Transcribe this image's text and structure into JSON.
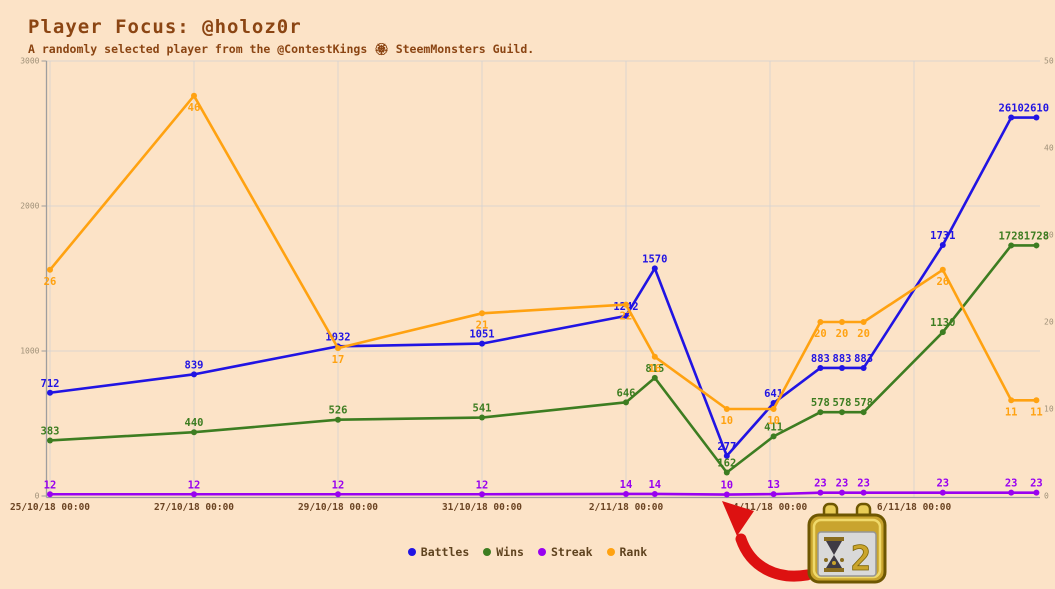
{
  "header": {
    "title": "Player Focus: @holoz0r",
    "subtitle": "A randomly selected player from the @ContestKings 🏵 SteemMonsters Guild."
  },
  "chart_data": {
    "type": "line",
    "title": "Player Focus: @holoz0r",
    "x_unit": "days since 25/10/18 00:00",
    "x": [
      0,
      2,
      4,
      6,
      8,
      8.4,
      9.4,
      10.05,
      10.7,
      11.0,
      11.3,
      12.4,
      13.35,
      13.7
    ],
    "x_ticks": [
      {
        "pos": 0,
        "label": "25/10/18 00:00"
      },
      {
        "pos": 2,
        "label": "27/10/18 00:00"
      },
      {
        "pos": 4,
        "label": "29/10/18 00:00"
      },
      {
        "pos": 6,
        "label": "31/10/18 00:00"
      },
      {
        "pos": 8,
        "label": "2/11/18 00:00"
      },
      {
        "pos": 10,
        "label": "4/11/18 00:00"
      },
      {
        "pos": 12,
        "label": "6/11/18 00:00"
      }
    ],
    "left_axis": {
      "range": [
        0,
        3000
      ],
      "ticks": [
        0,
        1000,
        2000,
        3000
      ]
    },
    "right_axis": {
      "range": [
        0,
        50
      ],
      "ticks": [
        0,
        10,
        20,
        30,
        40,
        50
      ]
    },
    "grid": true,
    "legend_position": "bottom",
    "series": [
      {
        "name": "Battles",
        "color": "#2114e3",
        "axis": "left",
        "label_position": "above",
        "values": [
          712,
          839,
          1032,
          1051,
          1242,
          1570,
          277,
          641,
          883,
          883,
          883,
          1731,
          2610,
          2610
        ]
      },
      {
        "name": "Wins",
        "color": "#3d7d21",
        "axis": "left",
        "label_position": "above",
        "values": [
          383,
          440,
          526,
          541,
          646,
          815,
          162,
          411,
          578,
          578,
          578,
          1130,
          1728,
          1728
        ]
      },
      {
        "name": "Streak",
        "color": "#9901f0",
        "axis": "left",
        "label_position": "above",
        "values": [
          12,
          12,
          12,
          12,
          14,
          14,
          10,
          13,
          23,
          23,
          23,
          23,
          23,
          23
        ]
      },
      {
        "name": "Rank",
        "color": "#ffa211",
        "axis": "right",
        "label_position": "below",
        "values": [
          26,
          46,
          17,
          21,
          22,
          16,
          10,
          10,
          20,
          20,
          20,
          26,
          11,
          11
        ]
      }
    ]
  },
  "legend": {
    "items": [
      {
        "label": "Battles",
        "color": "#2114e3"
      },
      {
        "label": "Wins",
        "color": "#3d7d21"
      },
      {
        "label": "Streak",
        "color": "#9901f0"
      },
      {
        "label": "Rank",
        "color": "#ffa211"
      }
    ]
  },
  "badge": {
    "number": "2"
  },
  "colors": {
    "background": "#fce3c7",
    "title": "#8b4513",
    "grid": "#d2d2d2",
    "axis_line": "#9e9e9e",
    "tick_text": "#a09179",
    "date_text": "#6b4423",
    "arrow": "#dd1111",
    "badge_gold": "#c9a42e"
  }
}
